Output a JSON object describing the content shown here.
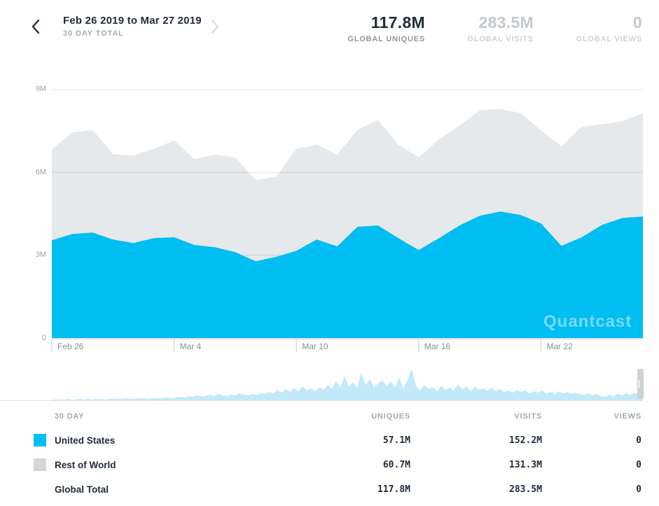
{
  "header": {
    "date_range": "Feb 26 2019 to Mar 27 2019",
    "period": "30 DAY TOTAL"
  },
  "stats": [
    {
      "value": "117.8M",
      "label": "GLOBAL UNIQUES",
      "active": true
    },
    {
      "value": "283.5M",
      "label": "GLOBAL VISITS",
      "active": false
    },
    {
      "value": "0",
      "label": "GLOBAL VIEWS",
      "active": false
    }
  ],
  "watermark": {
    "text": "Quantcast"
  },
  "palette": {
    "accent_blue": "#00bdf2",
    "area_gray": "#e6e9ec",
    "brush_blue": "#c2e9f9",
    "text_dark": "#222c3a",
    "grid_line": "rgba(40,55,70,0.13)",
    "axis_line": "#c6cbd0"
  },
  "chart_data": {
    "type": "area",
    "stacked": true,
    "title": "",
    "xlabel": "",
    "ylabel": "Uniques",
    "ylim": [
      0,
      9
    ],
    "y_ticks": [
      "9M",
      "6M",
      "3M",
      "0"
    ],
    "y_tick_values": [
      9,
      6,
      3,
      0
    ],
    "x": [
      "Feb 26",
      "Feb 27",
      "Feb 28",
      "Mar 1",
      "Mar 2",
      "Mar 3",
      "Mar 4",
      "Mar 5",
      "Mar 6",
      "Mar 7",
      "Mar 8",
      "Mar 9",
      "Mar 10",
      "Mar 11",
      "Mar 12",
      "Mar 13",
      "Mar 14",
      "Mar 15",
      "Mar 16",
      "Mar 17",
      "Mar 18",
      "Mar 19",
      "Mar 20",
      "Mar 21",
      "Mar 22",
      "Mar 23",
      "Mar 24",
      "Mar 25",
      "Mar 26",
      "Mar 27"
    ],
    "x_tick_indices": [
      0,
      6,
      12,
      18,
      24
    ],
    "series": [
      {
        "name": "United States",
        "color": "#00bdf2",
        "unit": "M",
        "values": [
          3.54,
          3.77,
          3.82,
          3.57,
          3.44,
          3.62,
          3.65,
          3.37,
          3.29,
          3.11,
          2.78,
          2.94,
          3.16,
          3.57,
          3.32,
          4.03,
          4.08,
          3.62,
          3.19,
          3.62,
          4.08,
          4.43,
          4.58,
          4.46,
          4.15,
          3.34,
          3.65,
          4.1,
          4.35,
          4.4
        ]
      },
      {
        "name": "Rest of World",
        "color": "#e6e9ec",
        "unit": "M",
        "values": [
          3.3,
          3.68,
          3.72,
          3.09,
          3.17,
          3.23,
          3.51,
          3.11,
          3.36,
          3.44,
          2.94,
          2.91,
          3.69,
          3.43,
          3.33,
          3.52,
          3.82,
          3.38,
          3.36,
          3.58,
          3.62,
          3.82,
          3.72,
          3.69,
          3.37,
          3.61,
          4.0,
          3.65,
          3.5,
          3.75
        ]
      }
    ],
    "legend_position": "table-below",
    "grid": true
  },
  "brush": {
    "color": "#c2e9f9",
    "heights": [
      0,
      0,
      0,
      0,
      0,
      0,
      0,
      0,
      0,
      0,
      0,
      0,
      0,
      1,
      1,
      1,
      2,
      1,
      1,
      2,
      1,
      2,
      1,
      2,
      2,
      1,
      2,
      2,
      2,
      2,
      3,
      2,
      2,
      3,
      3,
      2,
      3,
      3,
      3,
      3,
      4,
      3,
      4,
      5,
      4,
      6,
      5,
      7,
      5,
      6,
      8,
      6,
      9,
      7,
      6,
      8,
      7,
      10,
      8,
      7,
      9,
      8,
      10,
      9,
      12,
      10,
      14,
      11,
      16,
      12,
      18,
      13,
      20,
      14,
      17,
      13,
      19,
      15,
      22,
      16,
      28,
      18,
      35,
      20,
      26,
      17,
      40,
      22,
      30,
      19,
      24,
      28,
      21,
      27,
      18,
      32,
      16,
      30,
      45,
      20,
      14,
      22,
      16,
      19,
      13,
      21,
      15,
      18,
      14,
      23,
      16,
      19,
      13,
      20,
      15,
      17,
      14,
      18,
      13,
      16,
      12,
      14,
      11,
      15,
      12,
      14,
      10,
      13,
      11,
      14,
      10,
      12,
      9,
      13,
      10,
      12,
      9,
      11,
      9,
      8,
      10,
      7,
      9,
      6,
      5,
      8,
      6,
      9,
      7,
      10,
      8,
      11,
      9,
      10
    ]
  },
  "table": {
    "headers": [
      "30 DAY",
      "UNIQUES",
      "VISITS",
      "VIEWS"
    ],
    "rows": [
      {
        "label": "United States",
        "swatch": "#00bdf2",
        "uniques": "57.1M",
        "visits": "152.2M",
        "views": "0"
      },
      {
        "label": "Rest of World",
        "swatch": "#d3d7da",
        "uniques": "60.7M",
        "visits": "131.3M",
        "views": "0"
      },
      {
        "label": "Global Total",
        "swatch": null,
        "uniques": "117.8M",
        "visits": "283.5M",
        "views": "0"
      }
    ]
  }
}
